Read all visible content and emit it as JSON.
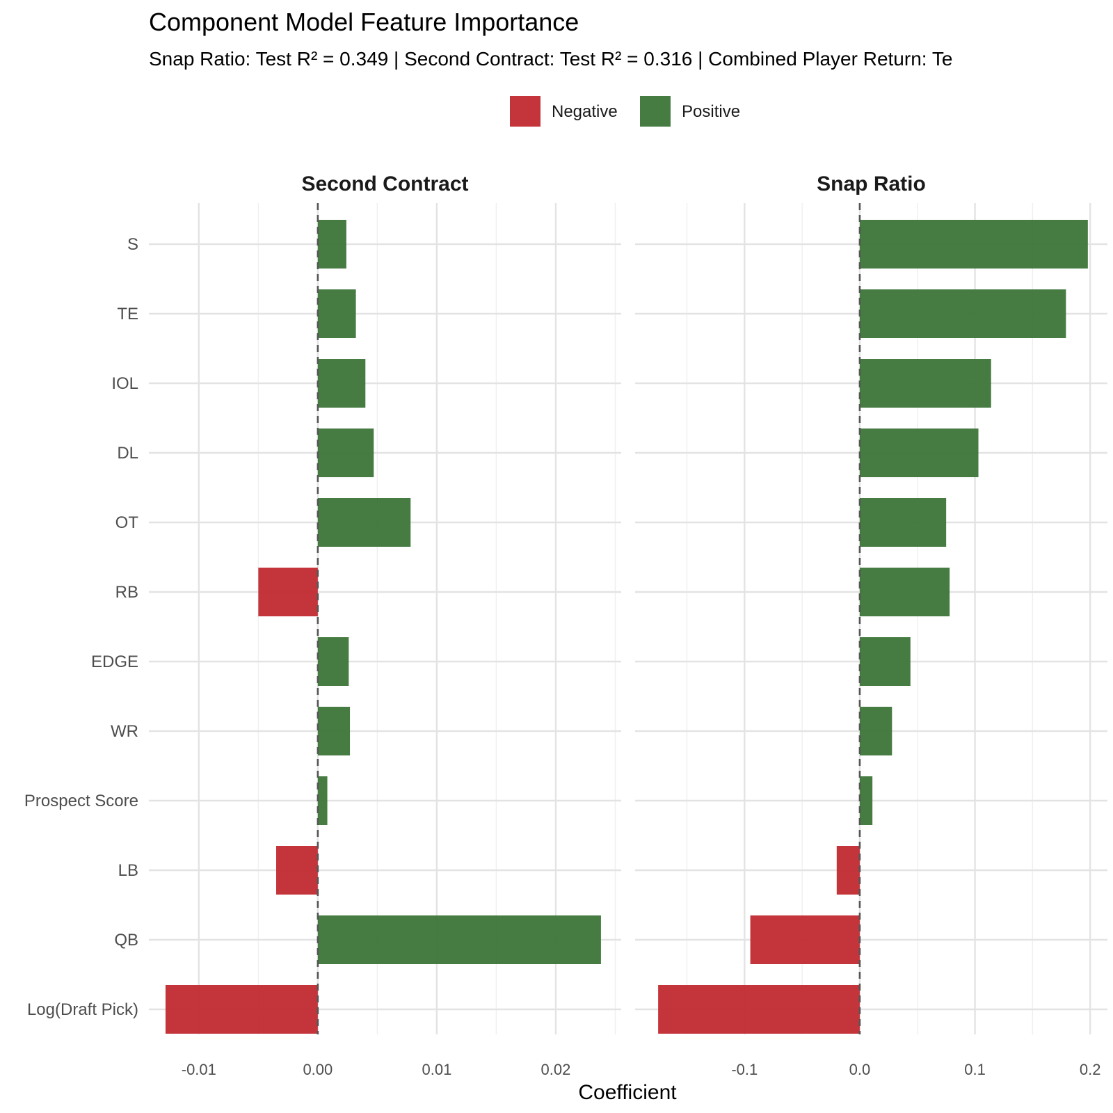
{
  "chart_data": {
    "type": "bar",
    "orientation": "horizontal",
    "title": "Component Model Feature Importance",
    "subtitle": "Snap Ratio: Test R² = 0.349 | Second Contract: Test R² = 0.316 | Combined Player Return: Te",
    "xlabel": "Coefficient",
    "ylabel": "",
    "legend": {
      "position": "top",
      "entries": [
        {
          "label": "Negative",
          "color": "#c0282f"
        },
        {
          "label": "Positive",
          "color": "#3a7436"
        }
      ]
    },
    "grid": true,
    "reference_line": {
      "x": 0,
      "style": "dashed"
    },
    "categories": [
      "S",
      "TE",
      "IOL",
      "DL",
      "OT",
      "RB",
      "EDGE",
      "WR",
      "Prospect Score",
      "LB",
      "QB",
      "Log(Draft Pick)"
    ],
    "panels": [
      {
        "name": "Second Contract",
        "xlim": [
          -0.0142,
          0.0255
        ],
        "ticks": [
          -0.01,
          0.0,
          0.01,
          0.02
        ],
        "tick_labels": [
          "-0.01",
          "0.00",
          "0.01",
          "0.02"
        ],
        "values": [
          0.0024,
          0.0032,
          0.004,
          0.0047,
          0.0078,
          -0.005,
          0.0026,
          0.0027,
          0.0008,
          -0.0035,
          0.0238,
          -0.0128
        ]
      },
      {
        "name": "Snap Ratio",
        "xlim": [
          -0.195,
          0.215
        ],
        "ticks": [
          -0.1,
          0.0,
          0.1,
          0.2
        ],
        "tick_labels": [
          "-0.1",
          "0.0",
          "0.1",
          "0.2"
        ],
        "values": [
          0.198,
          0.179,
          0.114,
          0.103,
          0.075,
          0.078,
          0.044,
          0.028,
          0.011,
          -0.02,
          -0.095,
          -0.175
        ]
      }
    ]
  }
}
